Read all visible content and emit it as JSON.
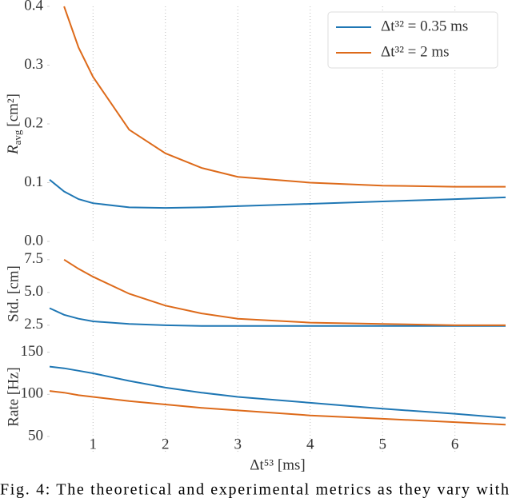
{
  "chart_data": [
    {
      "type": "line",
      "y_label": "R",
      "y_label_sub": "avg",
      "y_label_unit": "[cm²]",
      "x": [
        0.4,
        0.6,
        0.8,
        1,
        1.5,
        2,
        2.5,
        3,
        4,
        5,
        6,
        6.7
      ],
      "series": [
        {
          "name": "Δt³² = 0.35 ms",
          "color": "#1f77b4",
          "values": [
            0.105,
            0.085,
            0.072,
            0.065,
            0.058,
            0.057,
            0.058,
            0.06,
            0.064,
            0.068,
            0.072,
            0.075
          ]
        },
        {
          "name": "Δt³² = 2 ms",
          "color": "#dd6a1a",
          "values": [
            null,
            0.4,
            0.33,
            0.28,
            0.19,
            0.15,
            0.125,
            0.11,
            0.1,
            0.095,
            0.093,
            0.093
          ]
        }
      ],
      "xlim": [
        0.4,
        6.7
      ],
      "xticks": [
        1,
        2,
        3,
        4,
        5,
        6
      ],
      "ylim": [
        0,
        0.4
      ],
      "yticks": [
        {
          "value": 0,
          "label": "0.0"
        },
        0.1,
        0.2,
        0.3,
        0.4
      ],
      "grid": true,
      "legend": "upper right"
    },
    {
      "type": "line",
      "y_label": "Std. [cm]",
      "x": [
        0.4,
        0.6,
        0.8,
        1,
        1.5,
        2,
        2.5,
        3,
        4,
        5,
        6,
        6.7
      ],
      "series": [
        {
          "name": "Δt³² = 0.35 ms",
          "color": "#1f77b4",
          "values": [
            3.8,
            3.3,
            3.0,
            2.8,
            2.6,
            2.5,
            2.45,
            2.45,
            2.45,
            2.45,
            2.45,
            2.45
          ]
        },
        {
          "name": "Δt³² = 2 ms",
          "color": "#dd6a1a",
          "values": [
            null,
            7.5,
            6.8,
            6.2,
            4.9,
            4.0,
            3.4,
            3.0,
            2.7,
            2.6,
            2.5,
            2.5
          ]
        }
      ],
      "xlim": [
        0.4,
        6.7
      ],
      "xticks": [
        1,
        2,
        3,
        4,
        5,
        6
      ],
      "ylim": [
        1.7,
        8.1
      ],
      "yticks": [
        2.5,
        {
          "value": 5,
          "label": "5.0"
        },
        7.5
      ],
      "grid": true
    },
    {
      "type": "line",
      "y_label": "Rate [Hz]",
      "x_label": "Δt⁵³ [ms]",
      "x": [
        0.4,
        0.6,
        0.8,
        1,
        1.5,
        2,
        2.5,
        3,
        4,
        5,
        6,
        6.7
      ],
      "series": [
        {
          "name": "Δt³² = 0.35 ms",
          "color": "#1f77b4",
          "values": [
            133,
            131,
            128,
            125,
            116,
            108,
            102,
            97,
            90,
            83,
            77,
            72
          ]
        },
        {
          "name": "Δt³² = 2 ms",
          "color": "#dd6a1a",
          "values": [
            104,
            102,
            99,
            97,
            92,
            88,
            84,
            81,
            75,
            71,
            67,
            64
          ]
        }
      ],
      "xlim": [
        0.4,
        6.7
      ],
      "xticks": [
        1,
        2,
        3,
        4,
        5,
        6
      ],
      "ylim": [
        32,
        162
      ],
      "yticks": [
        50,
        100,
        150
      ],
      "grid": true
    }
  ],
  "caption": "Fig. 4: The theoretical and experimental metrics as they vary with"
}
